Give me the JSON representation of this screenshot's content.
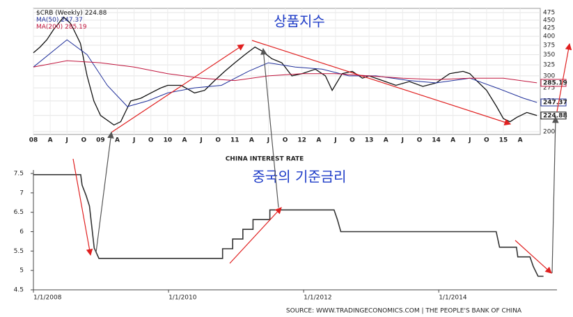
{
  "chart_data": [
    {
      "type": "line",
      "log_scale": true,
      "grid": true,
      "y_axis_side": "right",
      "last_value_labels": true,
      "annotation": "상품지수",
      "xlim": [
        2008,
        2015.55
      ],
      "ylim": [
        196,
        490
      ],
      "yticks": [
        200,
        225,
        250,
        275,
        300,
        325,
        350,
        375,
        400,
        425,
        450,
        475
      ],
      "xticks": [
        {
          "value": 2008,
          "label": "08"
        },
        {
          "value": 2008.25,
          "label": "A"
        },
        {
          "value": 2008.5,
          "label": "J"
        },
        {
          "value": 2008.75,
          "label": "O"
        },
        {
          "value": 2009,
          "label": "09"
        },
        {
          "value": 2009.25,
          "label": "A"
        },
        {
          "value": 2009.5,
          "label": "J"
        },
        {
          "value": 2009.75,
          "label": "O"
        },
        {
          "value": 2010,
          "label": "10"
        },
        {
          "value": 2010.25,
          "label": "A"
        },
        {
          "value": 2010.5,
          "label": "J"
        },
        {
          "value": 2010.75,
          "label": "O"
        },
        {
          "value": 2011,
          "label": "11"
        },
        {
          "value": 2011.25,
          "label": "A"
        },
        {
          "value": 2011.5,
          "label": "J"
        },
        {
          "value": 2011.75,
          "label": "O"
        },
        {
          "value": 2012,
          "label": "12"
        },
        {
          "value": 2012.25,
          "label": "A"
        },
        {
          "value": 2012.5,
          "label": "J"
        },
        {
          "value": 2012.75,
          "label": "O"
        },
        {
          "value": 2013,
          "label": "13"
        },
        {
          "value": 2013.25,
          "label": "A"
        },
        {
          "value": 2013.5,
          "label": "J"
        },
        {
          "value": 2013.75,
          "label": "O"
        },
        {
          "value": 2014,
          "label": "14"
        },
        {
          "value": 2014.25,
          "label": "A"
        },
        {
          "value": 2014.5,
          "label": "J"
        },
        {
          "value": 2014.75,
          "label": "O"
        },
        {
          "value": 2015,
          "label": "15"
        },
        {
          "value": 2015.25,
          "label": "A"
        }
      ],
      "series": [
        {
          "name": "$CRB (Weekly)",
          "color": "#111111",
          "x": [
            2008.0,
            2008.1,
            2008.2,
            2008.3,
            2008.45,
            2008.55,
            2008.6,
            2008.7,
            2008.8,
            2008.9,
            2009.0,
            2009.2,
            2009.3,
            2009.45,
            2009.6,
            2009.75,
            2009.9,
            2010.0,
            2010.2,
            2010.4,
            2010.55,
            2010.7,
            2010.85,
            2011.0,
            2011.15,
            2011.3,
            2011.4,
            2011.55,
            2011.7,
            2011.85,
            2012.0,
            2012.2,
            2012.35,
            2012.45,
            2012.6,
            2012.75,
            2012.9,
            2013.0,
            2013.2,
            2013.4,
            2013.6,
            2013.8,
            2014.0,
            2014.2,
            2014.4,
            2014.5,
            2014.6,
            2014.75,
            2014.9,
            2015.0,
            2015.1,
            2015.2,
            2015.35,
            2015.5
          ],
          "values": [
            355,
            370,
            390,
            420,
            460,
            440,
            420,
            380,
            300,
            250,
            225,
            210,
            215,
            250,
            255,
            265,
            275,
            280,
            280,
            265,
            270,
            290,
            310,
            330,
            350,
            370,
            360,
            340,
            330,
            300,
            305,
            315,
            300,
            270,
            305,
            310,
            295,
            300,
            290,
            280,
            288,
            278,
            285,
            305,
            310,
            305,
            290,
            270,
            240,
            220,
            215,
            222,
            230,
            224.88
          ]
        },
        {
          "name": "MA(50)",
          "color": "#1f2f9a",
          "x": [
            2008.0,
            2008.5,
            2008.8,
            2009.1,
            2009.4,
            2009.7,
            2010.0,
            2010.4,
            2010.8,
            2011.2,
            2011.5,
            2011.9,
            2012.3,
            2012.7,
            2013.1,
            2013.6,
            2014.0,
            2014.5,
            2014.9,
            2015.3,
            2015.5
          ],
          "values": [
            320,
            390,
            350,
            280,
            240,
            250,
            265,
            275,
            280,
            310,
            330,
            320,
            315,
            300,
            300,
            290,
            285,
            295,
            275,
            255,
            247.37
          ]
        },
        {
          "name": "MA(200)",
          "color": "#c0143c",
          "x": [
            2008.0,
            2008.5,
            2009.0,
            2009.5,
            2010.0,
            2010.5,
            2011.0,
            2011.5,
            2012.0,
            2012.5,
            2013.0,
            2013.5,
            2014.0,
            2014.5,
            2015.0,
            2015.5
          ],
          "values": [
            320,
            335,
            330,
            320,
            305,
            295,
            290,
            300,
            305,
            305,
            300,
            295,
            292,
            295,
            295,
            285.19
          ]
        }
      ]
    },
    {
      "type": "line",
      "log_scale": false,
      "grid": false,
      "y_axis_side": "left",
      "last_value_labels": false,
      "title": "CHINA INTEREST RATE",
      "annotation": "중국의 기준금리",
      "source": "SOURCE: WWW.TRADINGECONOMICS.COM | THE PEOPLE'S BANK OF CHINA",
      "xlim": [
        2008,
        2015.75
      ],
      "ylim": [
        4.5,
        7.5
      ],
      "yticks": [
        4.5,
        5,
        5.5,
        6,
        6.5,
        7,
        7.5
      ],
      "xticks": [
        {
          "value": 2008,
          "label": "1/1/2008"
        },
        {
          "value": 2010,
          "label": "1/1/2010"
        },
        {
          "value": 2012,
          "label": "1/1/2012"
        },
        {
          "value": 2014,
          "label": "1/1/2014"
        }
      ],
      "series": [
        {
          "name": "China Interest Rate",
          "color": "#333333",
          "x": [
            2008.0,
            2008.7,
            2008.72,
            2008.78,
            2008.83,
            2008.9,
            2008.97,
            2010.8,
            2010.8,
            2010.95,
            2010.95,
            2011.1,
            2011.1,
            2011.25,
            2011.25,
            2011.5,
            2011.5,
            2012.45,
            2012.5,
            2012.55,
            2014.85,
            2014.9,
            2015.15,
            2015.17,
            2015.35,
            2015.4,
            2015.47,
            2015.55
          ],
          "values": [
            7.47,
            7.47,
            7.2,
            6.93,
            6.66,
            5.58,
            5.31,
            5.31,
            5.56,
            5.56,
            5.81,
            5.81,
            6.06,
            6.06,
            6.31,
            6.31,
            6.56,
            6.56,
            6.31,
            6.0,
            6.0,
            5.6,
            5.6,
            5.35,
            5.35,
            5.1,
            4.85,
            4.85
          ]
        }
      ]
    }
  ]
}
